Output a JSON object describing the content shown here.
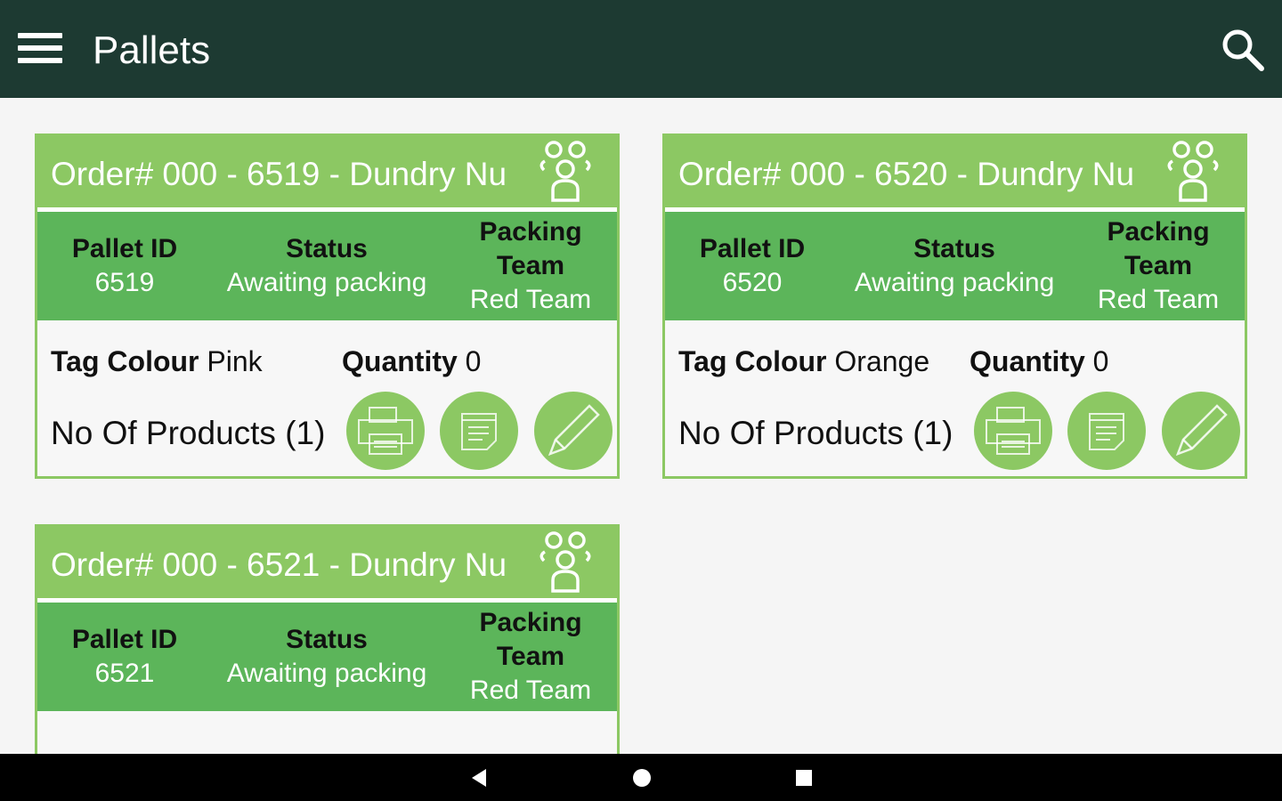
{
  "appbar": {
    "title": "Pallets",
    "menu_icon": "hamburger-menu-icon",
    "search_icon": "search-icon"
  },
  "colors": {
    "appbar": "#1d3a32",
    "card_header": "#8cc863",
    "card_band": "#5cb55a"
  },
  "labels": {
    "pallet_id": "Pallet ID",
    "status": "Status",
    "packing_team": "Packing Team",
    "tag_colour": "Tag Colour",
    "quantity": "Quantity"
  },
  "cards": [
    {
      "title": "Order# 000 - 6519 -   Dundry Nu",
      "pallet_id": "6519",
      "status": "Awaiting packing",
      "packing_team": "Red Team",
      "tag_colour": "Pink",
      "quantity": "0",
      "products": "No Of Products (1)"
    },
    {
      "title": "Order# 000 - 6520 -   Dundry Nu",
      "pallet_id": "6520",
      "status": "Awaiting packing",
      "packing_team": "Red Team",
      "tag_colour": "Orange",
      "quantity": "0",
      "products": "No Of Products (1)"
    },
    {
      "title": "Order# 000 - 6521 -   Dundry Nu",
      "pallet_id": "6521",
      "status": "Awaiting packing",
      "packing_team": "Red Team"
    }
  ]
}
